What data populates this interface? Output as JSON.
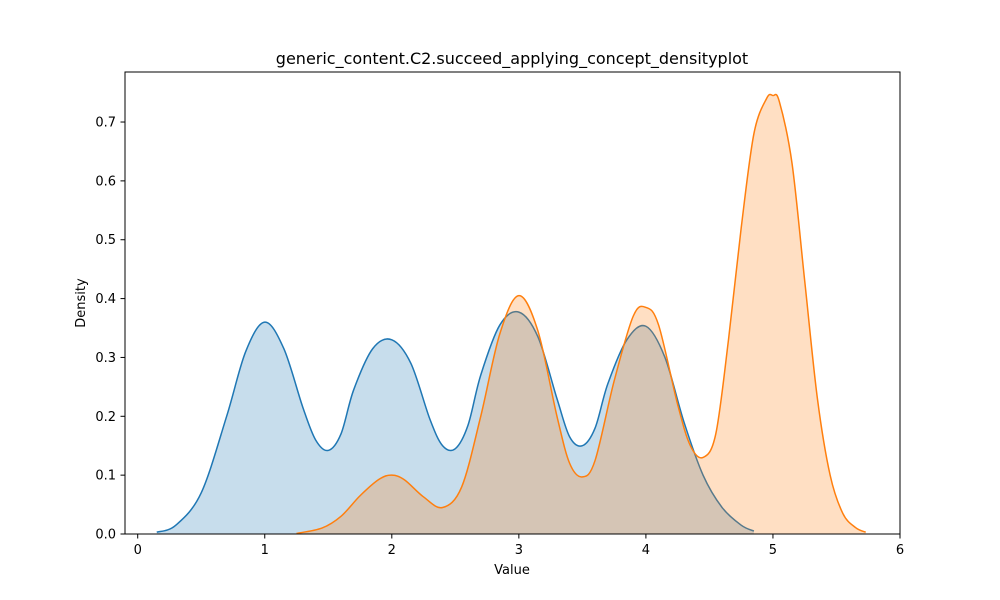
{
  "chart_data": {
    "type": "area",
    "title": "generic_content.C2.succeed_applying_concept_densityplot",
    "xlabel": "Value",
    "ylabel": "Density",
    "xlim": [
      -0.1,
      6.0
    ],
    "ylim": [
      0.0,
      0.785
    ],
    "x_ticks": [
      0,
      1,
      2,
      3,
      4,
      5,
      6
    ],
    "x_tick_labels": [
      "0",
      "1",
      "2",
      "3",
      "4",
      "5",
      "6"
    ],
    "y_ticks": [
      0.0,
      0.1,
      0.2,
      0.3,
      0.4,
      0.5,
      0.6,
      0.7
    ],
    "y_tick_labels": [
      "0.0",
      "0.1",
      "0.2",
      "0.3",
      "0.4",
      "0.5",
      "0.6",
      "0.7"
    ],
    "grid": false,
    "legend": "none",
    "series": [
      {
        "color": "#1f77b4",
        "fill_color": "#1f77b4",
        "fill_opacity": 0.25,
        "x": [
          0.15,
          0.3,
          0.5,
          0.7,
          0.85,
          1.0,
          1.15,
          1.3,
          1.4,
          1.5,
          1.6,
          1.7,
          1.85,
          2.0,
          2.15,
          2.3,
          2.4,
          2.5,
          2.6,
          2.7,
          2.85,
          3.0,
          3.15,
          3.3,
          3.4,
          3.5,
          3.6,
          3.7,
          3.85,
          4.0,
          4.15,
          4.3,
          4.45,
          4.6,
          4.75,
          4.85
        ],
        "y": [
          0.003,
          0.015,
          0.07,
          0.2,
          0.31,
          0.36,
          0.315,
          0.215,
          0.16,
          0.142,
          0.17,
          0.245,
          0.315,
          0.33,
          0.29,
          0.195,
          0.15,
          0.145,
          0.185,
          0.27,
          0.355,
          0.377,
          0.335,
          0.23,
          0.165,
          0.15,
          0.18,
          0.255,
          0.33,
          0.353,
          0.3,
          0.19,
          0.1,
          0.045,
          0.015,
          0.005
        ]
      },
      {
        "color": "#ff7f0e",
        "fill_color": "#ff7f0e",
        "fill_opacity": 0.25,
        "x": [
          1.25,
          1.45,
          1.6,
          1.75,
          1.9,
          2.0,
          2.1,
          2.25,
          2.4,
          2.55,
          2.7,
          2.85,
          3.0,
          3.15,
          3.3,
          3.4,
          3.5,
          3.6,
          3.75,
          3.9,
          4.0,
          4.1,
          4.25,
          4.35,
          4.45,
          4.55,
          4.65,
          4.75,
          4.85,
          4.95,
          5.0,
          5.05,
          5.15,
          5.25,
          5.35,
          5.45,
          5.55,
          5.65,
          5.73
        ],
        "y": [
          0.001,
          0.01,
          0.03,
          0.065,
          0.093,
          0.1,
          0.092,
          0.063,
          0.045,
          0.08,
          0.2,
          0.34,
          0.405,
          0.345,
          0.2,
          0.12,
          0.097,
          0.125,
          0.26,
          0.37,
          0.385,
          0.355,
          0.22,
          0.15,
          0.13,
          0.17,
          0.33,
          0.52,
          0.68,
          0.74,
          0.745,
          0.735,
          0.63,
          0.43,
          0.23,
          0.1,
          0.035,
          0.011,
          0.003
        ]
      }
    ]
  }
}
